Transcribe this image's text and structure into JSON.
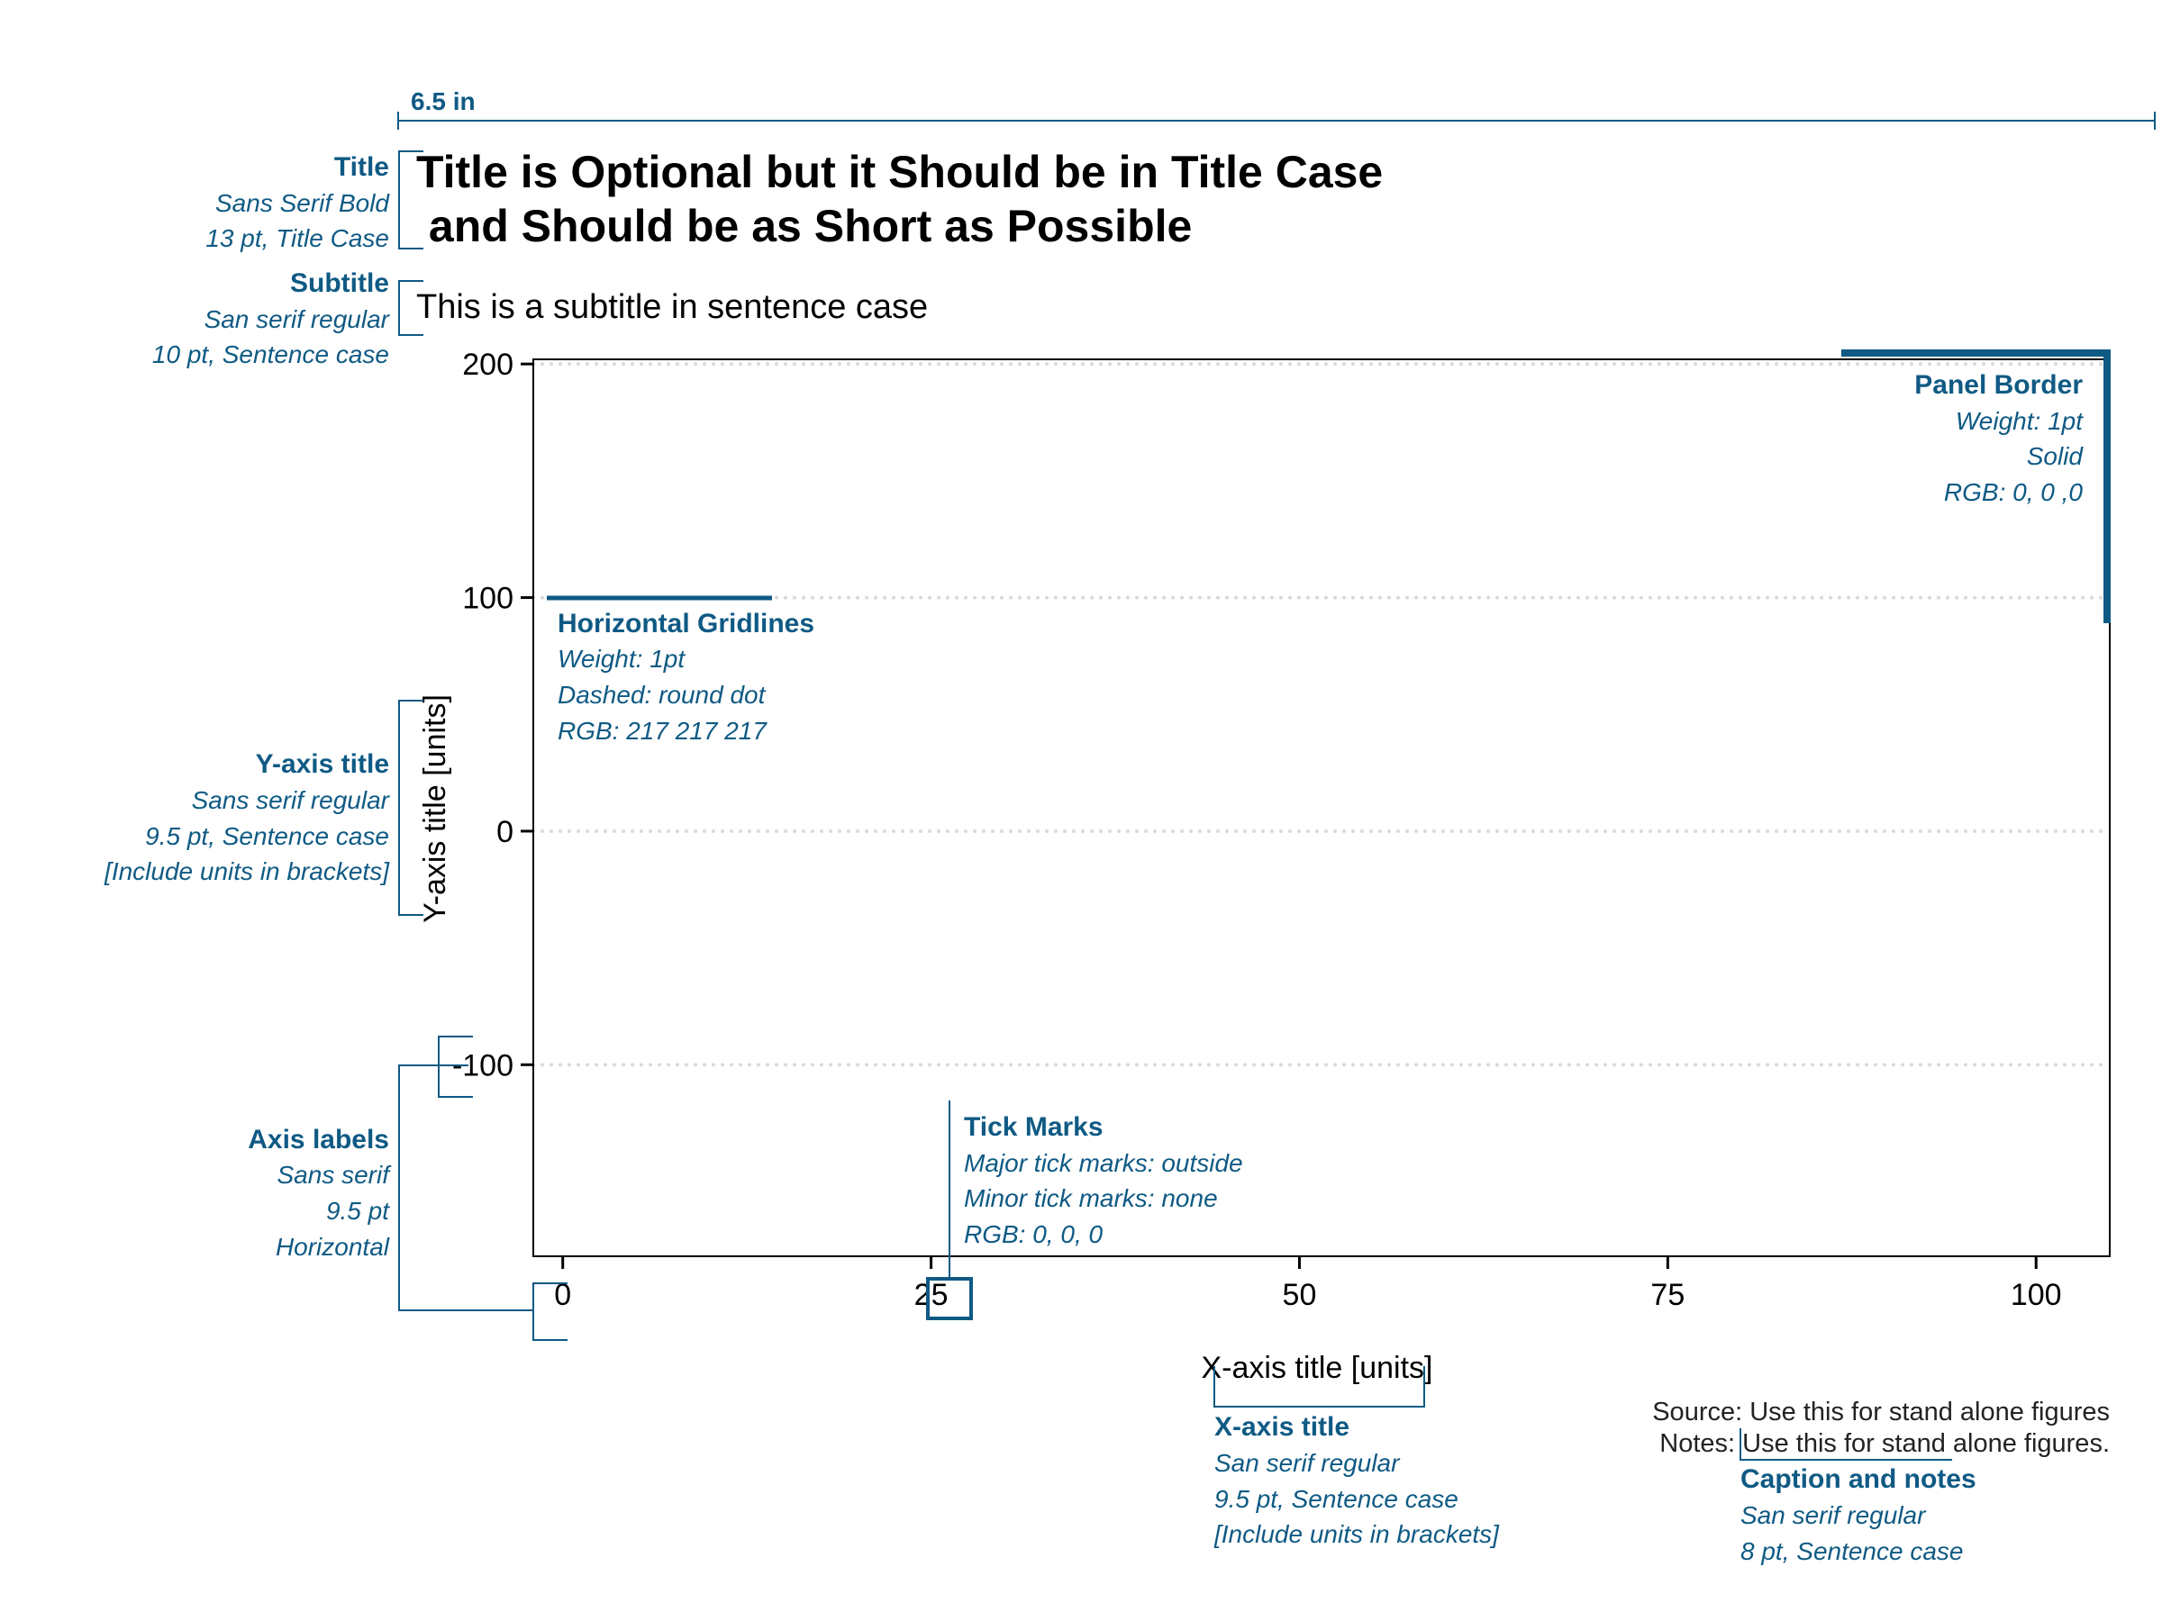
{
  "colors": {
    "annotation": "#0F5A84",
    "gridline": "#D9D9D9",
    "axis": "#000000",
    "text": "#000000"
  },
  "width_label": "6.5 in",
  "title_lines": [
    "Title is Optional but it Should be in Title Case",
    " and Should be as Short as Possible"
  ],
  "subtitle": "This is a subtitle in sentence case",
  "caption": {
    "source": "Source: Use this for stand alone figures",
    "notes": "Notes: Use this for stand alone figures."
  },
  "chart_data": {
    "type": "scatter",
    "x": [],
    "y": [],
    "title": "Title is Optional but it Should be in Title Case and Should be as Short as Possible",
    "subtitle": "This is a subtitle in sentence case",
    "xlabel": "X-axis title [units]",
    "ylabel": "Y-axis title [units]",
    "xlim": [
      -2,
      105
    ],
    "ylim": [
      -182,
      202
    ],
    "xticks": [
      0,
      25,
      50,
      75,
      100
    ],
    "yticks": [
      -100,
      0,
      100,
      200
    ],
    "grid": "horizontal dotted",
    "highlighted_xtick": 25
  },
  "annotations": {
    "title": {
      "head": "Title",
      "lines": [
        "Sans Serif Bold",
        "13 pt, Title Case"
      ]
    },
    "subtitle": {
      "head": "Subtitle",
      "lines": [
        "San serif regular",
        "10 pt, Sentence case"
      ]
    },
    "y_axis_title": {
      "head": "Y-axis title",
      "lines": [
        "Sans serif regular",
        "9.5 pt, Sentence case",
        "[Include units in brackets]"
      ]
    },
    "axis_labels": {
      "head": "Axis labels",
      "lines": [
        "Sans serif",
        "9.5 pt",
        "Horizontal"
      ]
    },
    "gridlines": {
      "head": "Horizontal Gridlines",
      "lines": [
        "Weight: 1pt",
        "Dashed: round dot",
        "RGB: 217 217 217"
      ]
    },
    "panel_border": {
      "head": "Panel Border",
      "lines": [
        "Weight: 1pt",
        "Solid",
        "RGB: 0, 0 ,0"
      ]
    },
    "tick_marks": {
      "head": "Tick Marks",
      "lines": [
        "Major tick marks: outside",
        "Minor tick marks: none",
        "RGB: 0, 0, 0"
      ]
    },
    "x_axis_title": {
      "head": "X-axis title",
      "lines": [
        "San serif regular",
        "9.5 pt, Sentence case",
        "[Include units in brackets]"
      ]
    },
    "caption": {
      "head": "Caption and notes",
      "lines": [
        "San serif regular",
        "8 pt, Sentence case"
      ]
    }
  }
}
